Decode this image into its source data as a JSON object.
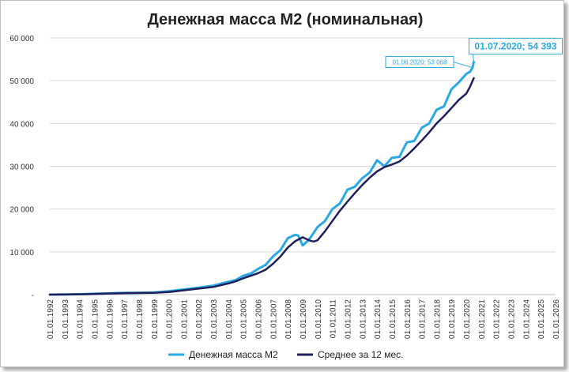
{
  "chart_data": {
    "type": "line",
    "title": "Денежная масса М2 (номинальная)",
    "xlabel": "",
    "ylabel": "",
    "ylim": [
      0,
      60000
    ],
    "y_ticks": [
      {
        "value": 0,
        "label": "-"
      },
      {
        "value": 10000,
        "label": "10 000"
      },
      {
        "value": 20000,
        "label": "20 000"
      },
      {
        "value": 30000,
        "label": "30 000"
      },
      {
        "value": 40000,
        "label": "40 000"
      },
      {
        "value": 50000,
        "label": "50 000"
      },
      {
        "value": 60000,
        "label": "60 000"
      }
    ],
    "x_tick_labels": [
      "01.01.1992",
      "01.01.1993",
      "01.01.1994",
      "01.01.1995",
      "01.01.1996",
      "01.01.1997",
      "01.01.1998",
      "01.01.1999",
      "01.01.2000",
      "01.01.2001",
      "01.01.2002",
      "01.01.2003",
      "01.01.2004",
      "01.01.2005",
      "01.01.2006",
      "01.01.2007",
      "01.01.2008",
      "01.01.2009",
      "01.01.2010",
      "01.01.2011",
      "01.01.2012",
      "01.01.2013",
      "01.01.2014",
      "01.01.2015",
      "01.01.2016",
      "01.01.2017",
      "01.01.2018",
      "01.01.2019",
      "01.01.2020",
      "01.01.2021",
      "01.01.2022",
      "01.01.2023",
      "01.01.2024",
      "01.01.2025",
      "01.01.2026"
    ],
    "xlim": [
      1992.0,
      2026.0
    ],
    "grid": "horizontal",
    "legend_position": "bottom",
    "series": [
      {
        "name": "Денежная масса М2",
        "color": "#29a9e1",
        "x": [
          1992.0,
          1993.0,
          1994.0,
          1995.0,
          1996.0,
          1997.0,
          1998.0,
          1999.0,
          2000.0,
          2001.0,
          2002.0,
          2003.0,
          2004.0,
          2004.5,
          2005.0,
          2005.5,
          2006.0,
          2006.5,
          2007.0,
          2007.5,
          2008.0,
          2008.5,
          2008.7,
          2009.0,
          2009.1,
          2009.3,
          2009.5,
          2010.0,
          2010.5,
          2011.0,
          2011.5,
          2012.0,
          2012.5,
          2013.0,
          2013.5,
          2014.0,
          2014.5,
          2015.0,
          2015.5,
          2016.0,
          2016.5,
          2017.0,
          2017.5,
          2018.0,
          2018.5,
          2019.0,
          2019.5,
          2020.0,
          2020.25,
          2020.42,
          2020.5
        ],
        "values": [
          0,
          30,
          100,
          200,
          300,
          400,
          400,
          500,
          800,
          1200,
          1600,
          2100,
          3000,
          3400,
          4400,
          4900,
          6000,
          6900,
          8900,
          10400,
          13200,
          14000,
          13800,
          11500,
          11800,
          12400,
          13200,
          15800,
          17200,
          20000,
          21300,
          24500,
          25200,
          27200,
          28500,
          31400,
          30000,
          32000,
          32200,
          35600,
          35900,
          39000,
          40000,
          43200,
          44000,
          48000,
          49600,
          51600,
          52100,
          53068,
          54393
        ]
      },
      {
        "name": "Среднее за 12 мес.",
        "color": "#1f1f5c",
        "x": [
          1992.0,
          1993.0,
          1994.0,
          1995.0,
          1996.0,
          1997.0,
          1998.0,
          1999.0,
          2000.0,
          2001.0,
          2002.0,
          2003.0,
          2004.0,
          2004.5,
          2005.0,
          2005.5,
          2006.0,
          2006.5,
          2007.0,
          2007.5,
          2008.0,
          2008.5,
          2009.0,
          2009.25,
          2009.5,
          2009.75,
          2010.0,
          2010.5,
          2011.0,
          2011.5,
          2012.0,
          2012.5,
          2013.0,
          2013.5,
          2014.0,
          2014.5,
          2015.0,
          2015.5,
          2016.0,
          2016.5,
          2017.0,
          2017.5,
          2018.0,
          2018.5,
          2019.0,
          2019.5,
          2020.0,
          2020.25,
          2020.5
        ],
        "values": [
          0,
          20,
          70,
          150,
          250,
          330,
          380,
          430,
          600,
          1000,
          1400,
          1800,
          2600,
          3100,
          3800,
          4400,
          5000,
          5800,
          7200,
          8900,
          11000,
          12500,
          13400,
          13000,
          12600,
          12400,
          12700,
          14800,
          17200,
          19600,
          21700,
          23700,
          25600,
          27300,
          28800,
          29800,
          30400,
          31100,
          32500,
          34200,
          36000,
          37900,
          40000,
          41700,
          43600,
          45500,
          47000,
          48600,
          50600
        ]
      }
    ],
    "annotations": [
      {
        "text": "01.07.2020;  54 393",
        "series": 0,
        "x": 2020.5,
        "y": 54393
      },
      {
        "text": "01.06.2020;  53 068",
        "series": 0,
        "x": 2020.42,
        "y": 53068
      }
    ]
  }
}
